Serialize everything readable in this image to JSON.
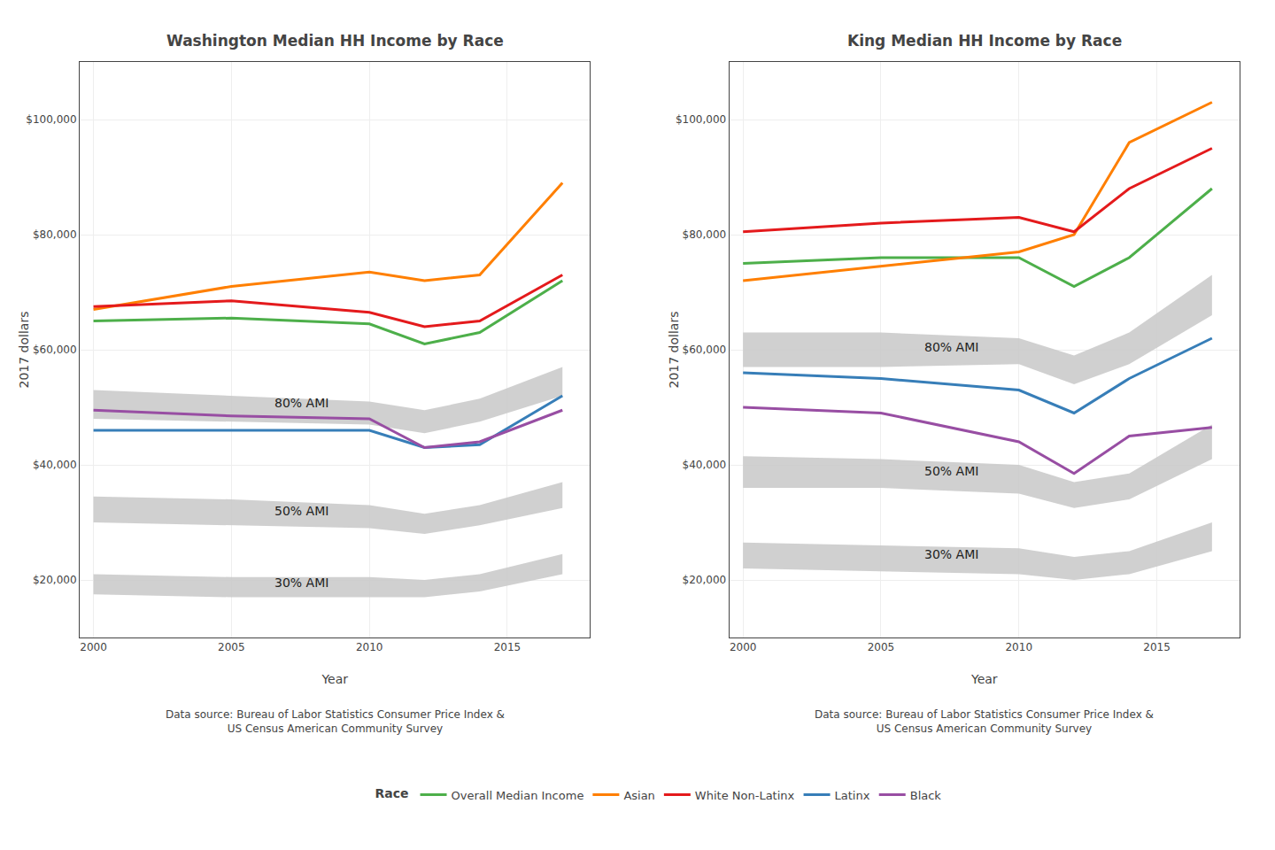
{
  "chart_data": [
    {
      "type": "line",
      "title": "Washington Median HH Income by Race",
      "xlabel": "Year",
      "ylabel": "2017 dollars",
      "caption": "Data source: Bureau of Labor Statistics Consumer Price Index &\nUS Census American Community Survey",
      "x": [
        2000,
        2005,
        2010,
        2012,
        2014,
        2017
      ],
      "xlim": [
        1999.5,
        2018
      ],
      "xticks": [
        2000,
        2005,
        2010,
        2015
      ],
      "ylim": [
        10000,
        110000
      ],
      "yticks": [
        {
          "value": 20000,
          "label": "$20,000"
        },
        {
          "value": 40000,
          "label": "$40,000"
        },
        {
          "value": 60000,
          "label": "$60,000"
        },
        {
          "value": 80000,
          "label": "$80,000"
        },
        {
          "value": 100000,
          "label": "$100,000"
        }
      ],
      "grid": true,
      "legend": "bottom",
      "legend_title": "Race",
      "bands": [
        {
          "color": "#C8C8C8",
          "low": [
            48000,
            47500,
            47000,
            45500,
            47500,
            52000
          ],
          "high": [
            53000,
            52000,
            51000,
            49500,
            51500,
            57000
          ]
        },
        {
          "color": "#C8C8C8",
          "low": [
            30000,
            29500,
            29000,
            28000,
            29500,
            32500
          ],
          "high": [
            34500,
            34000,
            33000,
            31500,
            33000,
            37000
          ]
        },
        {
          "color": "#C8C8C8",
          "low": [
            17500,
            17000,
            17000,
            17000,
            18000,
            21000
          ],
          "high": [
            21000,
            20500,
            20500,
            20000,
            21000,
            24500
          ]
        }
      ],
      "series": [
        {
          "name": "Overall Median Income",
          "color": "#4DAF4A",
          "values": [
            65000,
            65500,
            64500,
            61000,
            63000,
            72000
          ]
        },
        {
          "name": "Asian",
          "color": "#FF7F00",
          "values": [
            67000,
            71000,
            73500,
            72000,
            73000,
            89000
          ]
        },
        {
          "name": "White Non-Latinx",
          "color": "#E41A1C",
          "values": [
            67500,
            68500,
            66500,
            64000,
            65000,
            73000
          ]
        },
        {
          "name": "Latinx",
          "color": "#377EB8",
          "values": [
            46000,
            46000,
            46000,
            43000,
            43500,
            52000
          ]
        },
        {
          "name": "Black",
          "color": "#984EA3",
          "values": [
            49500,
            48500,
            48000,
            43000,
            44000,
            49500
          ]
        }
      ],
      "annotations": [
        {
          "text": "80% AMI",
          "x": 2006.5,
          "y": 50800,
          "color": "#222222"
        },
        {
          "text": "50% AMI",
          "x": 2006.5,
          "y": 32000,
          "color": "#222222"
        },
        {
          "text": "30% AMI",
          "x": 2006.5,
          "y": 19500,
          "color": "#222222"
        }
      ]
    },
    {
      "type": "line",
      "title": "King Median HH Income by Race",
      "xlabel": "Year",
      "ylabel": "2017 dollars",
      "caption": "Data source: Bureau of Labor Statistics Consumer Price Index &\nUS Census American Community Survey",
      "x": [
        2000,
        2005,
        2010,
        2012,
        2014,
        2017
      ],
      "xlim": [
        1999.5,
        2018
      ],
      "xticks": [
        2000,
        2005,
        2010,
        2015
      ],
      "ylim": [
        10000,
        110000
      ],
      "yticks": [
        {
          "value": 20000,
          "label": "$20,000"
        },
        {
          "value": 40000,
          "label": "$40,000"
        },
        {
          "value": 60000,
          "label": "$60,000"
        },
        {
          "value": 80000,
          "label": "$80,000"
        },
        {
          "value": 100000,
          "label": "$100,000"
        }
      ],
      "grid": true,
      "legend": "bottom",
      "legend_title": "Race",
      "bands": [
        {
          "color": "#C8C8C8",
          "low": [
            57000,
            57000,
            57500,
            54000,
            57500,
            66000
          ],
          "high": [
            63000,
            63000,
            62000,
            59000,
            63000,
            73000
          ]
        },
        {
          "color": "#C8C8C8",
          "low": [
            36000,
            36000,
            35000,
            32500,
            34000,
            41000
          ],
          "high": [
            41500,
            41000,
            40000,
            37000,
            38500,
            47000
          ]
        },
        {
          "color": "#C8C8C8",
          "low": [
            22000,
            21500,
            21000,
            20000,
            21000,
            25000
          ],
          "high": [
            26500,
            26000,
            25500,
            24000,
            25000,
            30000
          ]
        }
      ],
      "series": [
        {
          "name": "Overall Median Income",
          "color": "#4DAF4A",
          "values": [
            75000,
            76000,
            76000,
            71000,
            76000,
            88000
          ]
        },
        {
          "name": "Asian",
          "color": "#FF7F00",
          "values": [
            72000,
            74500,
            77000,
            80000,
            96000,
            103000
          ]
        },
        {
          "name": "White Non-Latinx",
          "color": "#E41A1C",
          "values": [
            80500,
            82000,
            83000,
            80500,
            88000,
            95000
          ]
        },
        {
          "name": "Latinx",
          "color": "#377EB8",
          "values": [
            56000,
            55000,
            53000,
            49000,
            55000,
            62000
          ]
        },
        {
          "name": "Black",
          "color": "#984EA3",
          "values": [
            50000,
            49000,
            44000,
            38500,
            45000,
            46500
          ]
        }
      ],
      "annotations": [
        {
          "text": "80% AMI",
          "x": 2006.5,
          "y": 60500,
          "color": "#222222"
        },
        {
          "text": "50% AMI",
          "x": 2006.5,
          "y": 39000,
          "color": "#222222"
        },
        {
          "text": "30% AMI",
          "x": 2006.5,
          "y": 24500,
          "color": "#222222"
        }
      ]
    }
  ]
}
